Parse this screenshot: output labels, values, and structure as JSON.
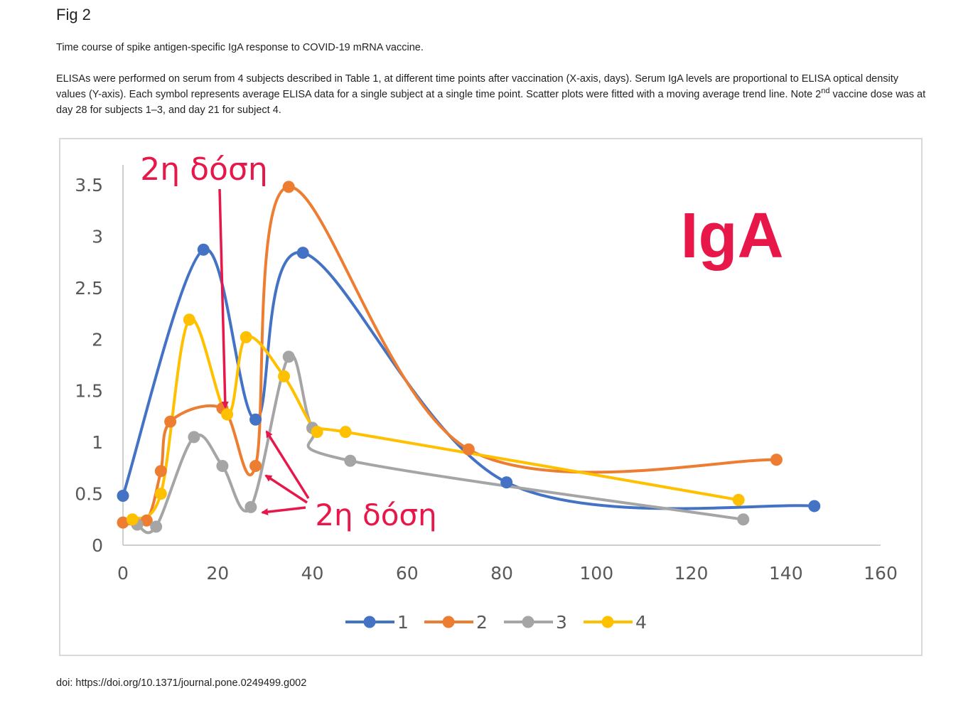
{
  "figure": {
    "label": "Fig 2",
    "caption_title": "Time course of spike antigen-specific IgA response to COVID-19 mRNA vaccine.",
    "caption_body_part1": "ELISAs were performed on serum from 4 subjects described in Table 1, at different time points after vaccination (X-axis, days). Serum IgA levels are proportional to ELISA optical density values (Y-axis). Each symbol represents average ELISA data for a single subject at a single time point. Scatter plots were fitted with a moving average trend line. Note 2",
    "caption_sup": "nd",
    "caption_body_part2": " vaccine dose was at day 28 for subjects 1–3, and day 21 for subject 4.",
    "doi": "doi: https://doi.org/10.1371/journal.pone.0249499.g002"
  },
  "annotations": {
    "igA_label": "IgA",
    "dose_label_top": "2η δόση",
    "dose_label_bottom": "2η δόση",
    "accent_color": "#e8174a"
  },
  "chart_data": {
    "type": "scatter",
    "title": "",
    "xlabel": "",
    "ylabel": "",
    "xlim": [
      0,
      160
    ],
    "ylim": [
      0,
      3.5
    ],
    "xticks": [
      0,
      20,
      40,
      60,
      80,
      100,
      120,
      140,
      160
    ],
    "yticks": [
      0,
      0.5,
      1,
      1.5,
      2,
      2.5,
      3,
      3.5
    ],
    "ytick_labels": [
      "0",
      "0.5",
      "1",
      "1.5",
      "2",
      "2.5",
      "3",
      "3.5"
    ],
    "legend_position": "bottom",
    "series": [
      {
        "name": "1",
        "color": "#4472c4",
        "points": [
          [
            0,
            0.48
          ],
          [
            17,
            2.87
          ],
          [
            28,
            1.22
          ],
          [
            38,
            2.84
          ],
          [
            81,
            0.61
          ],
          [
            146,
            0.38
          ]
        ]
      },
      {
        "name": "2",
        "color": "#ed7d31",
        "points": [
          [
            0,
            0.22
          ],
          [
            5,
            0.24
          ],
          [
            8,
            0.72
          ],
          [
            10,
            1.2
          ],
          [
            21,
            1.33
          ],
          [
            28,
            0.77
          ],
          [
            35,
            3.48
          ],
          [
            73,
            0.93
          ],
          [
            138,
            0.83
          ]
        ]
      },
      {
        "name": "3",
        "color": "#a5a5a5",
        "points": [
          [
            3,
            0.2
          ],
          [
            7,
            0.18
          ],
          [
            15,
            1.05
          ],
          [
            21,
            0.77
          ],
          [
            27,
            0.37
          ],
          [
            35,
            1.83
          ],
          [
            40,
            1.14
          ],
          [
            48,
            0.82
          ],
          [
            131,
            0.25
          ]
        ]
      },
      {
        "name": "4",
        "color": "#ffc000",
        "points": [
          [
            2,
            0.25
          ],
          [
            8,
            0.5
          ],
          [
            14,
            2.19
          ],
          [
            22,
            1.27
          ],
          [
            26,
            2.02
          ],
          [
            34,
            1.64
          ],
          [
            41,
            1.1
          ],
          [
            47,
            1.1
          ],
          [
            130,
            0.44
          ]
        ]
      }
    ]
  }
}
